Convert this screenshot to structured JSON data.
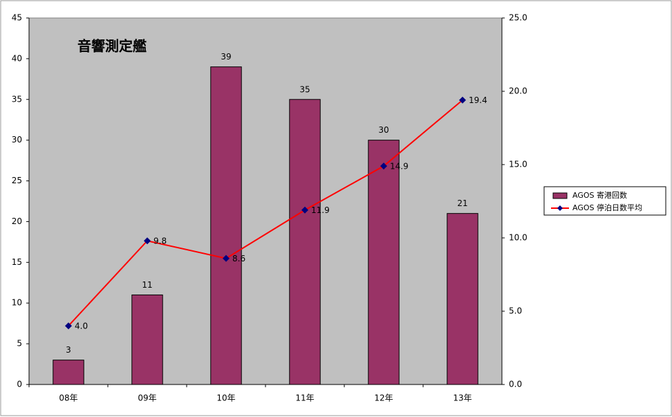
{
  "chart_data": {
    "type": "bar",
    "annotation": "音響測定艦",
    "categories": [
      "08年",
      "09年",
      "10年",
      "11年",
      "12年",
      "13年"
    ],
    "series": [
      {
        "name": "AGOS 寄港回数",
        "color": "#993366",
        "type": "bar",
        "values": [
          3,
          11,
          39,
          35,
          30,
          21
        ]
      },
      {
        "name": "AGOS 停泊日数平均",
        "color": "#ff0000",
        "marker_color": "#000080",
        "type": "line",
        "axis": "y2",
        "values": [
          4.0,
          9.8,
          8.6,
          11.9,
          14.9,
          19.4
        ],
        "value_labels": [
          "4.0",
          "9.8",
          "8.6",
          "11.9",
          "14.9",
          "19.4"
        ]
      }
    ],
    "ylim": [
      0,
      45
    ],
    "yticks": [
      0,
      5,
      10,
      15,
      20,
      25,
      30,
      35,
      40,
      45
    ],
    "y2lim": [
      0,
      25
    ],
    "y2ticks": [
      {
        "value": 0,
        "label": "0.0"
      },
      {
        "value": 5,
        "label": "5.0"
      },
      {
        "value": 10,
        "label": "10.0"
      },
      {
        "value": 15,
        "label": "15.0"
      },
      {
        "value": 20,
        "label": "20.0"
      },
      {
        "value": 25,
        "label": "25.0"
      }
    ],
    "legend": "right",
    "plot_background": "#c0c0c0"
  }
}
